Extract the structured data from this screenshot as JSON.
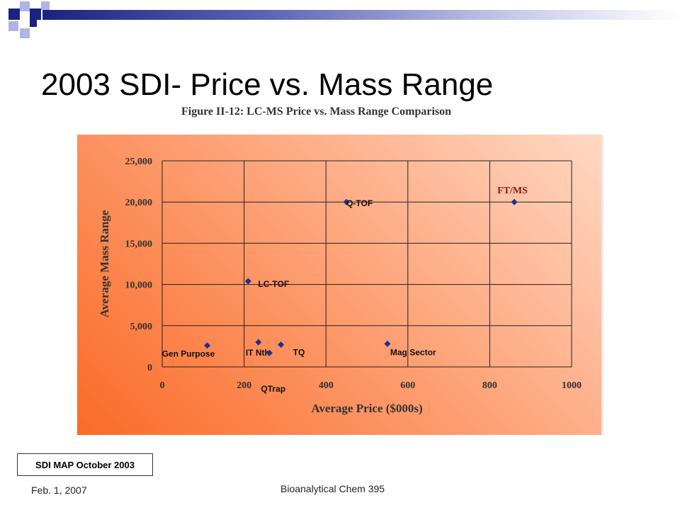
{
  "slide": {
    "title": "2003 SDI- Price vs. Mass Range",
    "figure_title": "Figure II-12: LC-MS Price vs. Mass Range Comparison",
    "source_badge": "SDI MAP October 2003",
    "footer_date": "Feb. 1, 2007",
    "footer_course": "Bioanalytical Chem 395"
  },
  "colors": {
    "marker": "#1f2f8f",
    "grid": "#222222",
    "ftms_label": "#8b1a1a",
    "deco_navy": "#1a237e",
    "deco_lavender": "#aeb4e6"
  },
  "chart_data": {
    "type": "scatter",
    "xlabel": "Average Price ($000s)",
    "ylabel": "Average Mass Range",
    "xlim": [
      0,
      1000
    ],
    "ylim": [
      0,
      25000
    ],
    "x_ticks": [
      "0",
      "200",
      "400",
      "600",
      "800",
      "1000"
    ],
    "y_ticks": [
      "0",
      "5,000",
      "10,000",
      "15,000",
      "20,000",
      "25,000"
    ],
    "grid": true,
    "points": [
      {
        "label": "Gen Purpose",
        "x": 110,
        "y": 2600
      },
      {
        "label": "LC-TOF",
        "x": 210,
        "y": 10400
      },
      {
        "label": "IT Nth",
        "x": 235,
        "y": 3000
      },
      {
        "label": "QTrap",
        "x": 262,
        "y": 1700
      },
      {
        "label": "TQ",
        "x": 290,
        "y": 2700
      },
      {
        "label": "Q-TOF",
        "x": 450,
        "y": 20000
      },
      {
        "label": "Mag Sector",
        "x": 550,
        "y": 2800
      },
      {
        "label": "FT/MS",
        "x": 860,
        "y": 20000
      }
    ]
  }
}
